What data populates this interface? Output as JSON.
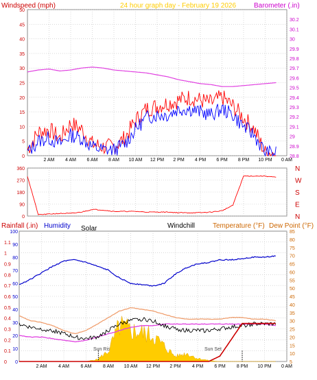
{
  "header": {
    "title": "24 hour graph day - February 19 2026",
    "windspeed_label": "Windspeed (mph)",
    "barometer_label": "Barometer (.in)"
  },
  "lower_header": {
    "rainfall_label": "Rainfall (.in)",
    "humidity_label": "Humidity",
    "solar_label": "Solar",
    "windchill_label": "Windchill",
    "temperature_label": "Temperature (°F)",
    "dewpoint_label": "Dew Point (°F)",
    "sunrise_label": "Sun Rise",
    "sunset_label": "Sun Set"
  },
  "colors": {
    "windspeed": "#ff0000",
    "gust": "#ff0000",
    "wind_avg": "#0000ff",
    "barometer": "#e040e0",
    "direction": "#ff0000",
    "humidity": "#0000cc",
    "temperature": "#f0a070",
    "dewpoint": "#e040e0",
    "windchill": "#000000",
    "rainfall": "#cc0000",
    "solar": "#ffcc00",
    "grid": "#c0c0c0",
    "axis_red": "#cc0000",
    "axis_magenta": "#cc00cc",
    "axis_blue": "#0000cc",
    "axis_brown": "#cc6600"
  },
  "chart_data": [
    {
      "type": "line",
      "name": "wind-barometer",
      "x_ticks": [
        "2 AM",
        "4 AM",
        "6 AM",
        "8 AM",
        "10 AM",
        "12 PM",
        "2 PM",
        "4 PM",
        "6 PM",
        "8 PM",
        "10 PM",
        "0 AM"
      ],
      "x": [
        0,
        1,
        2,
        3,
        4,
        5,
        6,
        7,
        8,
        9,
        10,
        11,
        12,
        13,
        14,
        15,
        16,
        17,
        18,
        19,
        20,
        21,
        22,
        23
      ],
      "ylim": [
        0,
        50
      ],
      "y_ticks": [
        0,
        5,
        10,
        15,
        20,
        25,
        30,
        35,
        40,
        45,
        50
      ],
      "y2lim": [
        28.8,
        30.3
      ],
      "y2_ticks": [
        "28.8",
        "28.9",
        "29",
        "29.1",
        "29.2",
        "29.3",
        "29.4",
        "29.5",
        "29.6",
        "29.7",
        "29.8",
        "29.9",
        "30",
        "30.1",
        "30.2"
      ],
      "grid": true,
      "series": [
        {
          "key": "gust",
          "values": [
            2,
            8,
            9,
            6,
            11,
            9,
            4,
            3,
            3,
            6,
            12,
            16,
            17,
            18,
            19,
            20,
            19,
            18,
            20,
            17,
            13,
            9,
            1,
            1
          ]
        },
        {
          "key": "speed",
          "values": [
            1,
            5,
            6,
            4,
            7,
            6,
            3,
            2,
            2,
            4,
            9,
            13,
            14,
            14,
            16,
            16,
            15,
            14,
            16,
            14,
            10,
            7,
            1,
            1
          ]
        },
        {
          "key": "barometer",
          "values": [
            29.66,
            29.68,
            29.69,
            29.67,
            29.68,
            29.7,
            29.71,
            29.7,
            29.68,
            29.67,
            29.66,
            29.65,
            29.63,
            29.61,
            29.58,
            29.56,
            29.54,
            29.53,
            29.51,
            29.51,
            29.52,
            29.53,
            29.54,
            29.55
          ]
        }
      ]
    },
    {
      "type": "line",
      "name": "wind-direction",
      "ylim": [
        0,
        360
      ],
      "y_ticks": [
        0,
        90,
        180,
        270,
        360
      ],
      "y2_ticks": [
        "N",
        "E",
        "S",
        "W",
        "N"
      ],
      "series": [
        {
          "key": "direction",
          "values": [
            300,
            10,
            15,
            20,
            20,
            30,
            50,
            45,
            35,
            35,
            35,
            30,
            30,
            30,
            25,
            25,
            25,
            30,
            40,
            80,
            300,
            300,
            300,
            290
          ]
        }
      ]
    },
    {
      "type": "line",
      "name": "temperature-humidity",
      "ylim": [
        0,
        1.2
      ],
      "y_ticks": [
        "0",
        "0.1",
        "0.2",
        "0.3",
        "0.4",
        "0.5",
        "0.6",
        "0.7",
        "0.8",
        "0.9",
        "1",
        "1.1"
      ],
      "humidity_ticks": [
        0,
        10,
        20,
        30,
        40,
        50,
        60,
        70,
        80,
        90,
        100
      ],
      "temp_ticks": [
        5,
        10,
        15,
        20,
        25,
        30,
        35,
        40,
        45,
        50,
        55,
        60,
        65,
        70,
        75,
        80,
        85
      ],
      "series": [
        {
          "key": "humidity",
          "values": [
            59,
            63,
            68,
            73,
            77,
            78,
            76,
            73,
            70,
            64,
            60,
            59,
            58,
            60,
            67,
            72,
            75,
            76,
            78,
            78,
            79,
            80,
            80,
            81
          ]
        },
        {
          "key": "temperature",
          "values": [
            33,
            30,
            29,
            27,
            24,
            22,
            24,
            28,
            32,
            36,
            38,
            37,
            36,
            34,
            32,
            31,
            31,
            31,
            31,
            32,
            32,
            31,
            31,
            30
          ]
        },
        {
          "key": "dewpoint",
          "values": [
            21,
            20,
            20,
            19,
            18,
            17,
            18,
            20,
            22,
            24,
            26,
            27,
            27,
            28,
            28,
            28,
            28,
            28,
            28,
            28,
            28,
            28,
            28,
            27
          ]
        },
        {
          "key": "windchill",
          "values": [
            28,
            26,
            25,
            24,
            22,
            20,
            19,
            20,
            24,
            28,
            30,
            31,
            30,
            27,
            25,
            24,
            24,
            24,
            25,
            26,
            27,
            28,
            28,
            28
          ]
        },
        {
          "key": "rainfall",
          "values": [
            0,
            0,
            0,
            0,
            0,
            0,
            0,
            0,
            0,
            0,
            0,
            0,
            0,
            0,
            0,
            0,
            0,
            0,
            0.05,
            0.2,
            0.35,
            0.35,
            0.35,
            0.35
          ]
        },
        {
          "key": "solar",
          "values": [
            0,
            0,
            0,
            0,
            0,
            0,
            0,
            0.02,
            0.1,
            0.35,
            0.3,
            0.28,
            0.25,
            0.15,
            0.05,
            0.08,
            0.03,
            0.01,
            0,
            0,
            0,
            0,
            0,
            0
          ]
        }
      ]
    }
  ]
}
